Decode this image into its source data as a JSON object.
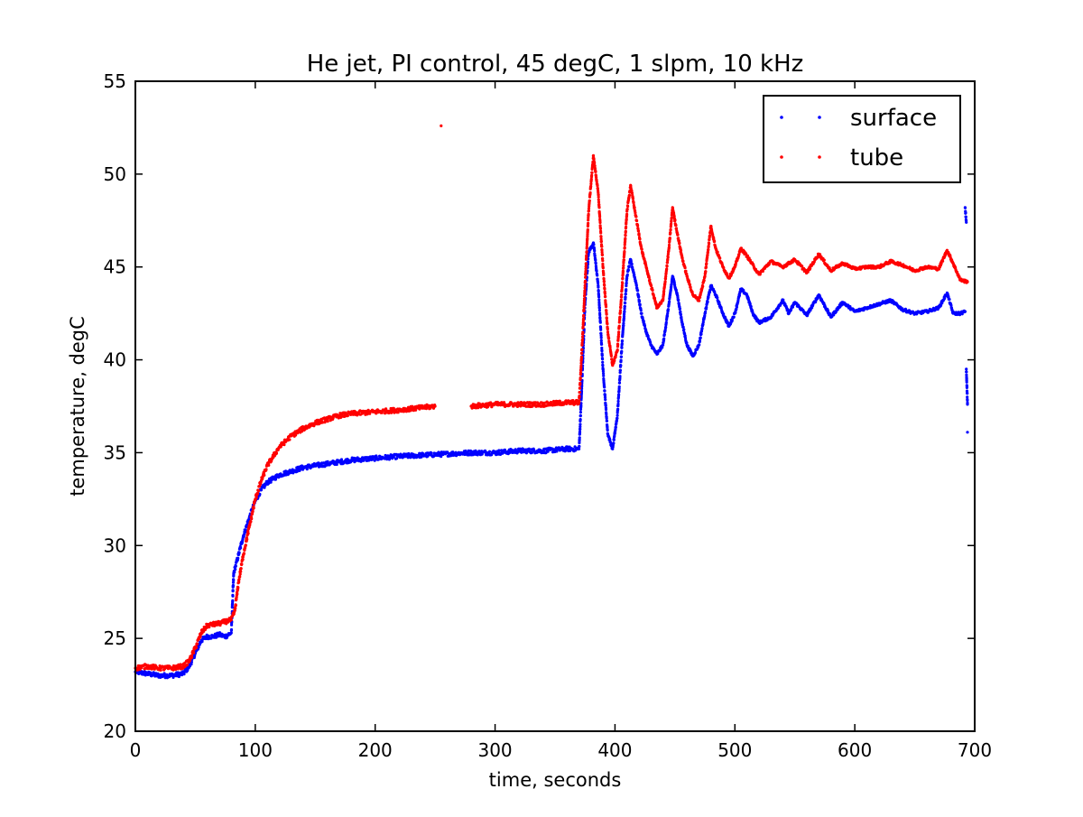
{
  "chart_data": {
    "type": "scatter",
    "title": "He jet, PI control, 45 degC, 1 slpm, 10 kHz",
    "xlabel": "time, seconds",
    "ylabel": "temperature, degC",
    "xlim": [
      0,
      700
    ],
    "ylim": [
      20,
      55
    ],
    "xticks": [
      "0",
      "100",
      "200",
      "300",
      "400",
      "500",
      "600",
      "700"
    ],
    "yticks": [
      "20",
      "25",
      "30",
      "35",
      "40",
      "45",
      "50",
      "55"
    ],
    "grid": false,
    "legend_position": "upper-right",
    "series": [
      {
        "name": "surface",
        "color": "#0000ff",
        "points": [
          [
            0,
            23.2
          ],
          [
            10,
            23.1
          ],
          [
            20,
            23.0
          ],
          [
            30,
            23.0
          ],
          [
            40,
            23.1
          ],
          [
            45,
            23.5
          ],
          [
            50,
            24.2
          ],
          [
            55,
            24.9
          ],
          [
            60,
            25.1
          ],
          [
            65,
            25.1
          ],
          [
            70,
            25.2
          ],
          [
            75,
            25.1
          ],
          [
            80,
            25.3
          ],
          [
            82,
            28.5
          ],
          [
            86,
            29.5
          ],
          [
            90,
            30.5
          ],
          [
            95,
            31.5
          ],
          [
            100,
            32.4
          ],
          [
            105,
            33.0
          ],
          [
            110,
            33.4
          ],
          [
            120,
            33.8
          ],
          [
            130,
            34.0
          ],
          [
            140,
            34.2
          ],
          [
            150,
            34.3
          ],
          [
            160,
            34.4
          ],
          [
            170,
            34.5
          ],
          [
            180,
            34.6
          ],
          [
            200,
            34.7
          ],
          [
            220,
            34.8
          ],
          [
            250,
            34.9
          ],
          [
            280,
            35.0
          ],
          [
            300,
            35.0
          ],
          [
            320,
            35.1
          ],
          [
            340,
            35.1
          ],
          [
            360,
            35.2
          ],
          [
            370,
            35.2
          ],
          [
            372,
            38.0
          ],
          [
            375,
            43.0
          ],
          [
            378,
            45.8
          ],
          [
            382,
            46.3
          ],
          [
            386,
            44.0
          ],
          [
            390,
            39.5
          ],
          [
            394,
            36.0
          ],
          [
            398,
            35.2
          ],
          [
            402,
            37.0
          ],
          [
            406,
            41.0
          ],
          [
            410,
            44.5
          ],
          [
            413,
            45.4
          ],
          [
            418,
            44.0
          ],
          [
            422,
            42.5
          ],
          [
            426,
            41.5
          ],
          [
            430,
            40.8
          ],
          [
            435,
            40.3
          ],
          [
            440,
            40.8
          ],
          [
            445,
            43.0
          ],
          [
            448,
            44.5
          ],
          [
            452,
            43.5
          ],
          [
            456,
            42.0
          ],
          [
            460,
            40.8
          ],
          [
            465,
            40.2
          ],
          [
            470,
            40.8
          ],
          [
            475,
            42.5
          ],
          [
            480,
            44.0
          ],
          [
            484,
            43.5
          ],
          [
            490,
            42.5
          ],
          [
            495,
            41.8
          ],
          [
            500,
            42.5
          ],
          [
            505,
            43.8
          ],
          [
            510,
            43.5
          ],
          [
            515,
            42.5
          ],
          [
            520,
            42.0
          ],
          [
            530,
            42.3
          ],
          [
            540,
            43.2
          ],
          [
            545,
            42.5
          ],
          [
            550,
            43.1
          ],
          [
            560,
            42.4
          ],
          [
            570,
            43.5
          ],
          [
            580,
            42.3
          ],
          [
            590,
            43.1
          ],
          [
            600,
            42.6
          ],
          [
            610,
            42.8
          ],
          [
            620,
            43.0
          ],
          [
            630,
            43.2
          ],
          [
            640,
            42.7
          ],
          [
            650,
            42.5
          ],
          [
            660,
            42.6
          ],
          [
            670,
            42.8
          ],
          [
            677,
            43.6
          ],
          [
            682,
            42.5
          ],
          [
            688,
            42.5
          ],
          [
            692,
            42.6
          ],
          [
            692,
            48.2
          ],
          [
            693,
            47.4
          ],
          [
            693,
            39.5
          ],
          [
            694,
            37.6
          ],
          [
            694,
            36.1
          ]
        ]
      },
      {
        "name": "tube",
        "color": "#ff0000",
        "points": [
          [
            0,
            23.4
          ],
          [
            10,
            23.5
          ],
          [
            20,
            23.4
          ],
          [
            30,
            23.4
          ],
          [
            40,
            23.5
          ],
          [
            45,
            23.8
          ],
          [
            50,
            24.5
          ],
          [
            55,
            25.3
          ],
          [
            60,
            25.7
          ],
          [
            70,
            25.8
          ],
          [
            80,
            26.0
          ],
          [
            83,
            26.5
          ],
          [
            86,
            28.0
          ],
          [
            90,
            29.5
          ],
          [
            95,
            31.0
          ],
          [
            100,
            32.5
          ],
          [
            105,
            33.5
          ],
          [
            110,
            34.3
          ],
          [
            120,
            35.3
          ],
          [
            130,
            35.9
          ],
          [
            140,
            36.3
          ],
          [
            150,
            36.6
          ],
          [
            160,
            36.8
          ],
          [
            170,
            37.0
          ],
          [
            180,
            37.1
          ],
          [
            200,
            37.2
          ],
          [
            220,
            37.3
          ],
          [
            250,
            37.5
          ],
          [
            255,
            52.6
          ],
          [
            280,
            37.5
          ],
          [
            300,
            37.6
          ],
          [
            320,
            37.6
          ],
          [
            340,
            37.6
          ],
          [
            360,
            37.7
          ],
          [
            370,
            37.7
          ],
          [
            372,
            40.0
          ],
          [
            375,
            44.0
          ],
          [
            378,
            48.0
          ],
          [
            382,
            51.0
          ],
          [
            386,
            49.0
          ],
          [
            390,
            45.0
          ],
          [
            394,
            41.5
          ],
          [
            398,
            39.7
          ],
          [
            402,
            40.5
          ],
          [
            406,
            44.0
          ],
          [
            410,
            48.0
          ],
          [
            413,
            49.4
          ],
          [
            418,
            47.5
          ],
          [
            422,
            46.0
          ],
          [
            426,
            45.0
          ],
          [
            430,
            44.0
          ],
          [
            435,
            42.8
          ],
          [
            440,
            43.2
          ],
          [
            445,
            46.0
          ],
          [
            448,
            48.2
          ],
          [
            452,
            46.8
          ],
          [
            456,
            45.5
          ],
          [
            460,
            44.5
          ],
          [
            465,
            43.5
          ],
          [
            470,
            43.2
          ],
          [
            475,
            44.5
          ],
          [
            480,
            47.2
          ],
          [
            484,
            46.0
          ],
          [
            490,
            45.0
          ],
          [
            495,
            44.4
          ],
          [
            500,
            45.0
          ],
          [
            505,
            46.0
          ],
          [
            510,
            45.6
          ],
          [
            520,
            44.6
          ],
          [
            530,
            45.3
          ],
          [
            540,
            45.0
          ],
          [
            550,
            45.4
          ],
          [
            560,
            44.7
          ],
          [
            570,
            45.7
          ],
          [
            580,
            44.8
          ],
          [
            590,
            45.2
          ],
          [
            600,
            44.9
          ],
          [
            610,
            45.0
          ],
          [
            620,
            45.0
          ],
          [
            630,
            45.3
          ],
          [
            640,
            45.1
          ],
          [
            650,
            44.8
          ],
          [
            660,
            45.0
          ],
          [
            670,
            44.9
          ],
          [
            677,
            45.9
          ],
          [
            682,
            45.2
          ],
          [
            688,
            44.3
          ],
          [
            694,
            44.2
          ]
        ]
      }
    ]
  }
}
